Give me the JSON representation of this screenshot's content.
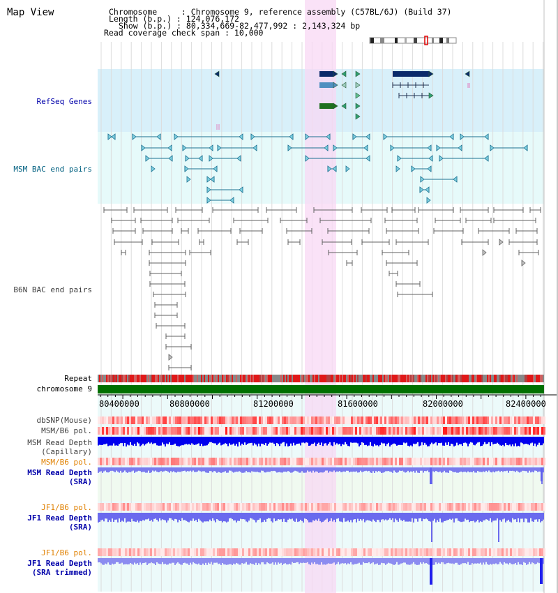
{
  "map_title": "Map View",
  "info": {
    "chromosome_line": "Chromosome     : Chromosome 9, reference assembly (C57BL/6J) (Build 37)",
    "length_line": "Length (b.p.) : 124,076,172",
    "show_line": "Show (b.p.) : 80,334,669-82,477,992 : 2,143,324 bp",
    "coverage_line": "Read coverage check span : 10,000"
  },
  "tracks": {
    "refseq": "RefSeq Genes",
    "msm_bac": "MSM BAC end pairs",
    "b6n_bac": "B6N BAC end pairs",
    "repeat": "Repeat",
    "chromosome": "chromosome 9",
    "dbsnp": "dbSNP(Mouse)",
    "msm_b6_pol_1": "MSM/B6 pol.",
    "msm_read_depth_cap": "MSM Read Depth\n(Capillary)",
    "msm_b6_pol_2": "MSM/B6 pol.",
    "msm_read_depth_sra": "MSM Read Depth\n(SRA)",
    "jf1_b6_pol_1": "JF1/B6 pol.",
    "jf1_read_depth_sra": "JF1 Read Depth\n(SRA)",
    "jf1_b6_pol_2": "JF1/B6 pol.",
    "jf1_read_depth_trim": "JF1 Read Depth\n(SRA trimmed)"
  },
  "axis_ticks": [
    "80400000",
    "80800000",
    "81200000",
    "81600000",
    "82000000",
    "82400000"
  ],
  "colors": {
    "refseq_bg": "#d8f0fa",
    "msm_bac_bg": "#e6fafa",
    "highlight": "#f8d8f4",
    "chromosome_green": "#007000",
    "navy": "#0a2a6a",
    "teal": "#1a7090",
    "gray": "#606060",
    "label_blue": "#0000aa",
    "label_teal": "#006080",
    "label_orange": "#e08000",
    "depth_blue": "#0000ee",
    "depth_light": "#7a7aee"
  }
}
